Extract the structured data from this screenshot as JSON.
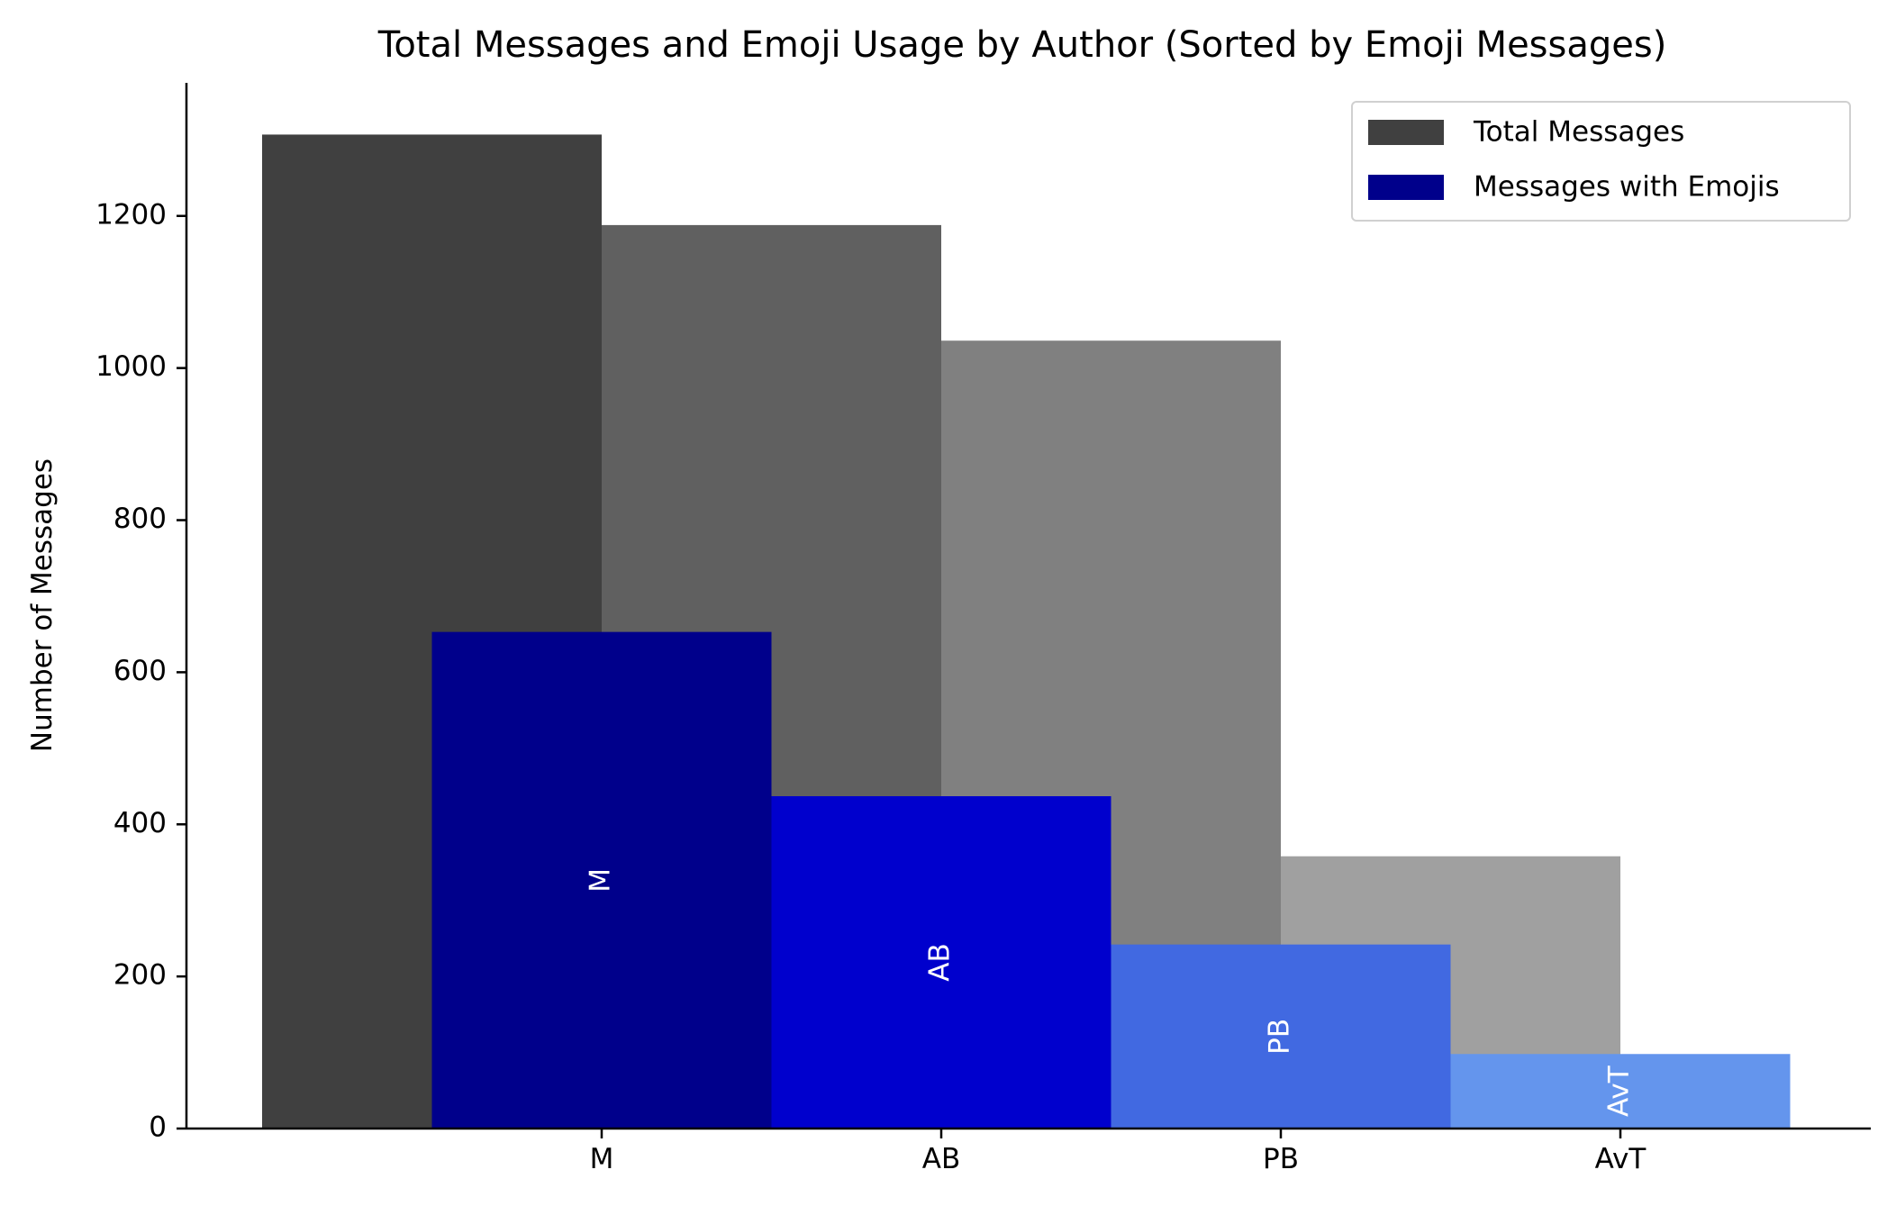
{
  "chart_data": {
    "type": "bar",
    "title": "Total Messages and Emoji Usage by Author (Sorted by Emoji Messages)",
    "xlabel": "",
    "ylabel": "Number of Messages",
    "categories": [
      "M",
      "AB",
      "PB",
      "AvT"
    ],
    "ylim": [
      0,
      1375
    ],
    "yticks": [
      0,
      200,
      400,
      600,
      800,
      1000,
      1200
    ],
    "grid": false,
    "legend_position": "top-right",
    "series": [
      {
        "name": "Total Messages",
        "values": [
          1307,
          1188,
          1036,
          358
        ],
        "colors": [
          "#404040",
          "#606060",
          "#808080",
          "#a0a0a0"
        ],
        "offset": "left"
      },
      {
        "name": "Messages with Emojis",
        "values": [
          653,
          437,
          242,
          98
        ],
        "colors": [
          "#00008b",
          "#0000cd",
          "#4169e1",
          "#6495ed"
        ],
        "offset": "right"
      }
    ],
    "bar_labels": [
      "M",
      "AB",
      "PB",
      "AvT"
    ],
    "legend_swatch_colors": [
      "#404040",
      "#00008b"
    ]
  }
}
